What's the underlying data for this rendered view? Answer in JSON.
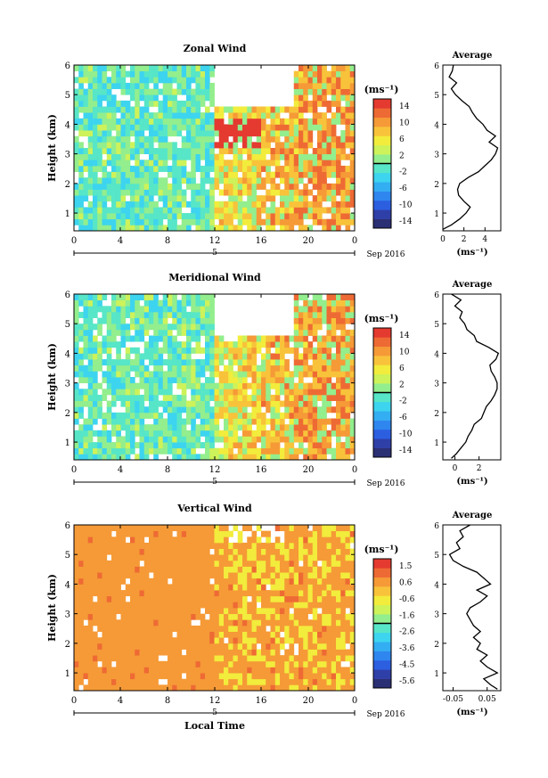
{
  "figure": {
    "xaxis_title": "Local Time",
    "month_label": "Sep 2016",
    "day_label": "5"
  },
  "colors": {
    "cbar": [
      "#2b2f73",
      "#2f3fa8",
      "#2c5ee0",
      "#2f86ef",
      "#33aef2",
      "#3dd4ef",
      "#57e6c7",
      "#93ee8d",
      "#cdf25a",
      "#f2ec3c",
      "#f8c33a",
      "#f59a37",
      "#ee6a34",
      "#e43a30"
    ],
    "separator": "#000000"
  },
  "panels": [
    {
      "title": "Zonal Wind",
      "ylabel": "Height (km)",
      "unit": "(ms⁻¹)",
      "cbar_ticks": [
        "14",
        "10",
        "6",
        "2",
        "-2",
        "-6",
        "-10",
        "-14"
      ],
      "avg_title": "Average",
      "avg_xlabel": "(ms⁻¹)",
      "avg_xticks": [
        "0",
        "2",
        "4"
      ]
    },
    {
      "title": "Meridional Wind",
      "ylabel": "Height (km)",
      "unit": "(ms⁻¹)",
      "cbar_ticks": [
        "14",
        "10",
        "6",
        "2",
        "-2",
        "-6",
        "-10",
        "-14"
      ],
      "avg_title": "Average",
      "avg_xlabel": "(ms⁻¹)",
      "avg_xticks": [
        "0",
        "2"
      ]
    },
    {
      "title": "Vertical Wind",
      "ylabel": "Height (km)",
      "unit": "(ms⁻¹)",
      "cbar_ticks": [
        "1.5",
        "0.6",
        "-0.6",
        "-1.6",
        "-2.6",
        "-3.6",
        "-4.5",
        "-5.6"
      ],
      "avg_title": "Average",
      "avg_xlabel": "(ms⁻¹)",
      "avg_xticks": [
        "-0.05",
        "0.05"
      ]
    }
  ],
  "chart_data": [
    {
      "type": "heatmap",
      "title": "Zonal Wind",
      "xlabel": "",
      "ylabel": "Height (km)",
      "x_ticks": [
        "0",
        "4",
        "8",
        "12",
        "16",
        "20",
        "0"
      ],
      "y_ticks": [
        "1",
        "2",
        "3",
        "4",
        "5",
        "6"
      ],
      "xlim": [
        0,
        24
      ],
      "ylim": [
        0.4,
        6
      ],
      "colorbar_range": [
        -14,
        14
      ],
      "colorbar_ticks": [
        14,
        10,
        6,
        2,
        -2,
        -6,
        -10,
        -14
      ],
      "average_profile": {
        "title": "Average",
        "xlabel": "(ms⁻¹)",
        "xlim": [
          0,
          5.5
        ],
        "x_ticks": [
          0,
          2,
          4
        ],
        "height": [
          0.45,
          0.6,
          0.8,
          1.0,
          1.2,
          1.4,
          1.6,
          1.8,
          2.0,
          2.2,
          2.4,
          2.6,
          2.8,
          3.0,
          3.2,
          3.4,
          3.6,
          3.8,
          4.0,
          4.2,
          4.4,
          4.6,
          4.8,
          5.0,
          5.2,
          5.4,
          5.6,
          5.8,
          6.0
        ],
        "values": [
          0.0,
          0.8,
          1.6,
          2.2,
          2.6,
          2.0,
          1.5,
          1.4,
          1.6,
          2.4,
          3.4,
          4.0,
          4.6,
          5.0,
          5.2,
          4.4,
          5.0,
          4.2,
          3.8,
          3.2,
          2.8,
          2.5,
          1.8,
          1.2,
          0.8,
          1.3,
          0.6,
          0.9,
          1.0
        ]
      }
    },
    {
      "type": "heatmap",
      "title": "Meridional Wind",
      "xlabel": "",
      "ylabel": "Height (km)",
      "x_ticks": [
        "0",
        "4",
        "8",
        "12",
        "16",
        "20",
        "0"
      ],
      "y_ticks": [
        "1",
        "2",
        "3",
        "4",
        "5",
        "6"
      ],
      "xlim": [
        0,
        24
      ],
      "ylim": [
        0.4,
        6
      ],
      "colorbar_range": [
        -14,
        14
      ],
      "colorbar_ticks": [
        14,
        10,
        6,
        2,
        -2,
        -6,
        -10,
        -14
      ],
      "average_profile": {
        "title": "Average",
        "xlabel": "(ms⁻¹)",
        "xlim": [
          -1,
          3.8
        ],
        "x_ticks": [
          0,
          2
        ],
        "height": [
          0.45,
          0.6,
          0.8,
          1.0,
          1.2,
          1.4,
          1.6,
          1.8,
          2.0,
          2.2,
          2.4,
          2.6,
          2.8,
          3.0,
          3.2,
          3.4,
          3.6,
          3.8,
          4.0,
          4.2,
          4.4,
          4.6,
          4.8,
          5.0,
          5.2,
          5.4,
          5.6,
          5.8,
          6.0
        ],
        "values": [
          -0.3,
          0.1,
          0.5,
          0.9,
          1.1,
          1.4,
          1.6,
          2.2,
          2.4,
          2.6,
          3.0,
          3.3,
          3.5,
          3.5,
          3.3,
          3.0,
          2.9,
          3.4,
          3.6,
          2.8,
          1.8,
          1.6,
          1.0,
          0.8,
          0.4,
          0.6,
          0.0,
          0.5,
          -0.3
        ]
      }
    },
    {
      "type": "heatmap",
      "title": "Vertical Wind",
      "xlabel": "Local Time",
      "ylabel": "Height (km)",
      "x_ticks": [
        "0",
        "4",
        "8",
        "12",
        "16",
        "20",
        "0"
      ],
      "y_ticks": [
        "1",
        "2",
        "3",
        "4",
        "5",
        "6"
      ],
      "xlim": [
        0,
        24
      ],
      "ylim": [
        0.4,
        6
      ],
      "colorbar_range": [
        -5.6,
        1.5
      ],
      "colorbar_ticks": [
        1.5,
        0.6,
        -0.6,
        -1.6,
        -2.6,
        -3.6,
        -4.5,
        -5.6
      ],
      "average_profile": {
        "title": "Average",
        "xlabel": "(ms⁻¹)",
        "xlim": [
          -0.08,
          0.09
        ],
        "x_ticks": [
          -0.05,
          0.05
        ],
        "height": [
          0.45,
          0.6,
          0.8,
          1.0,
          1.2,
          1.4,
          1.6,
          1.8,
          2.0,
          2.2,
          2.4,
          2.6,
          2.8,
          3.0,
          3.2,
          3.4,
          3.6,
          3.8,
          4.0,
          4.2,
          4.4,
          4.6,
          4.8,
          5.0,
          5.2,
          5.4,
          5.6,
          5.8,
          6.0
        ],
        "values": [
          0.08,
          0.06,
          0.04,
          0.08,
          0.05,
          0.03,
          0.05,
          0.02,
          0.03,
          0.01,
          0.03,
          0.01,
          0.0,
          -0.01,
          0.0,
          0.03,
          0.05,
          0.02,
          0.06,
          0.04,
          0.02,
          -0.02,
          -0.05,
          -0.06,
          -0.03,
          -0.04,
          -0.02,
          -0.03,
          0.0
        ]
      }
    }
  ]
}
